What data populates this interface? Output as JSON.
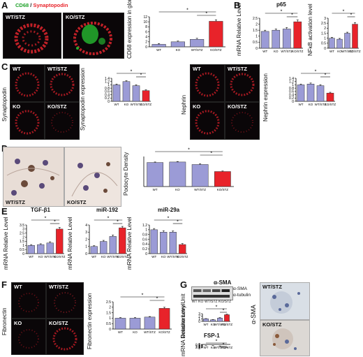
{
  "panels": {
    "A": {
      "label": "A",
      "legend_green": "CD68",
      "legend_red": "Synaptopodin",
      "img1": "WT/STZ",
      "img2": "KO/STZ"
    },
    "B": {
      "label": "B",
      "title": "p65"
    },
    "C": {
      "label": "C",
      "row_label_1": "Synaptopodin",
      "row_label_2": "Nephrin",
      "imgs": [
        "WT",
        "WT/STZ",
        "KO",
        "KO/STZ",
        "WT",
        "WT/STZ",
        "KO",
        "KO/STZ"
      ]
    },
    "D": {
      "label": "D",
      "img1": "WT/STZ",
      "img2": "KO/STZ"
    },
    "E": {
      "label": "E"
    },
    "F": {
      "label": "F",
      "row_label": "Fibronectin",
      "imgs": [
        "WT",
        "WT/STZ",
        "KO",
        "KO/STZ"
      ]
    },
    "G": {
      "label": "G",
      "blot_title": "α-SMA",
      "band1": "α-SMA",
      "band2": "α-tubulin",
      "blot_lanes": [
        "WT",
        "KO",
        "WT/STZ",
        "KO/STZ"
      ],
      "img_label": "α-SMA",
      "img1": "WT/STZ",
      "img2": "KO/STZ"
    }
  },
  "colors": {
    "bar_default": "#9b9bd6",
    "bar_highlight": "#e8232a",
    "bar_edge": "#333333",
    "sig_star": "#000000"
  },
  "chart_data": [
    {
      "id": "A",
      "type": "bar",
      "categories": [
        "WT",
        "KO",
        "WT/STZ",
        "KO/STZ"
      ],
      "values": [
        1,
        2,
        3,
        10.2
      ],
      "errors": [
        0.3,
        0.3,
        0.4,
        0.6
      ],
      "ylabel": "CD68 expression in glomeruli",
      "ylim": [
        0,
        12
      ],
      "yticks": [
        0,
        2,
        4,
        6,
        8,
        10,
        12
      ],
      "sig": [
        [
          2,
          3
        ],
        [
          0,
          3
        ]
      ]
    },
    {
      "id": "B1",
      "type": "bar",
      "categories": [
        "WT",
        "KO",
        "WT/STZ",
        "KO/STZ"
      ],
      "values": [
        1.4,
        1.5,
        1.6,
        2.2
      ],
      "errors": [
        0.1,
        0.1,
        0.12,
        0.15
      ],
      "ylabel": "mRNA Relative Level",
      "ylim": [
        0,
        2.5
      ],
      "yticks": [
        0,
        0.5,
        1,
        1.5,
        2,
        2.5
      ],
      "sig": [
        [
          2,
          3
        ],
        [
          0,
          3
        ]
      ]
    },
    {
      "id": "B2",
      "type": "bar",
      "categories": [
        "WT",
        "KO",
        "WT/STZ",
        "KO/STZ"
      ],
      "values": [
        1.0,
        0.9,
        1.5,
        2.4
      ],
      "errors": [
        0.08,
        0.08,
        0.1,
        0.15
      ],
      "ylabel": "NFκB activation level",
      "ylim": [
        0,
        3
      ],
      "yticks": [
        0,
        0.5,
        1,
        1.5,
        2,
        2.5,
        3
      ],
      "sig": [
        [
          2,
          3
        ],
        [
          0,
          3
        ]
      ]
    },
    {
      "id": "C1",
      "type": "bar",
      "categories": [
        "WT",
        "KO",
        "WT/STZ",
        "KO/STZ"
      ],
      "values": [
        1.0,
        1.2,
        0.95,
        0.65
      ],
      "errors": [
        0.05,
        0.05,
        0.05,
        0.05
      ],
      "ylabel": "Synaptopodin expression",
      "ylim": [
        0,
        1.4
      ],
      "yticks": [
        0,
        0.2,
        0.4,
        0.6,
        0.8,
        1,
        1.2,
        1.4
      ],
      "sig": [
        [
          2,
          3
        ],
        [
          0,
          3
        ]
      ]
    },
    {
      "id": "C2",
      "type": "bar",
      "categories": [
        "WT",
        "KO",
        "WT/STZ",
        "KO/STZ"
      ],
      "values": [
        1.0,
        1.05,
        0.95,
        0.5
      ],
      "errors": [
        0.05,
        0.06,
        0.06,
        0.05
      ],
      "ylabel": "Nephrin expression",
      "ylim": [
        0,
        1.4
      ],
      "yticks": [
        0,
        0.2,
        0.4,
        0.6,
        0.8,
        1,
        1.2,
        1.4
      ],
      "sig": [
        [
          2,
          3
        ],
        [
          0,
          3
        ]
      ]
    },
    {
      "id": "D",
      "type": "bar",
      "categories": [
        "WT",
        "KO",
        "WT/STZ",
        "KO/STZ"
      ],
      "values": [
        48,
        49,
        44,
        30
      ],
      "errors": [
        1,
        1,
        1.5,
        1
      ],
      "ylabel": "Podocyte Density",
      "ylim": [
        0,
        60
      ],
      "yticks": [],
      "sig": [
        [
          2,
          3
        ],
        [
          0,
          3
        ]
      ]
    },
    {
      "id": "E1",
      "type": "bar",
      "title": "TGF-β1",
      "categories": [
        "WT",
        "KO",
        "WT/STZ",
        "KO/STZ"
      ],
      "values": [
        1.0,
        1.1,
        1.3,
        3.0
      ],
      "errors": [
        0.1,
        0.1,
        0.15,
        0.2
      ],
      "ylabel": "mRNA Relative Level",
      "ylim": [
        0,
        3.5
      ],
      "yticks": [
        0,
        0.5,
        1,
        1.5,
        2,
        2.5,
        3,
        3.5
      ],
      "sig": [
        [
          2,
          3
        ],
        [
          0,
          3
        ]
      ]
    },
    {
      "id": "E2",
      "type": "bar",
      "title": "miR-192",
      "categories": [
        "WT",
        "KO",
        "WT/STZ",
        "KO/STZ"
      ],
      "values": [
        1.0,
        1.7,
        2.4,
        3.6
      ],
      "errors": [
        0.1,
        0.15,
        0.2,
        0.2
      ],
      "ylabel": "mRNA Relative Level",
      "ylim": [
        0,
        4
      ],
      "yticks": [
        0,
        1,
        2,
        3,
        4
      ],
      "sig": [
        [
          2,
          3
        ],
        [
          0,
          3
        ]
      ]
    },
    {
      "id": "E3",
      "type": "bar",
      "title": "miR-29a",
      "categories": [
        "WT",
        "KO",
        "WT/STZ",
        "KO/STZ"
      ],
      "values": [
        1.0,
        0.9,
        0.9,
        0.38
      ],
      "errors": [
        0.05,
        0.06,
        0.05,
        0.04
      ],
      "ylabel": "mRNA Relative Level",
      "ylim": [
        0,
        1.2
      ],
      "yticks": [
        0,
        0.2,
        0.4,
        0.6,
        0.8,
        1,
        1.2
      ],
      "sig": [
        [
          2,
          3
        ],
        [
          0,
          3
        ]
      ]
    },
    {
      "id": "F",
      "type": "bar",
      "categories": [
        "WT",
        "KO",
        "WT/STZ",
        "KO/STZ"
      ],
      "values": [
        1.0,
        1.0,
        1.1,
        1.9
      ],
      "errors": [
        0.05,
        0.05,
        0.05,
        0.1
      ],
      "ylabel": "Fibronectin expression",
      "ylim": [
        0,
        2.5
      ],
      "yticks": [
        0,
        0.5,
        1,
        1.5,
        2,
        2.5
      ],
      "sig": [
        [
          2,
          3
        ],
        [
          0,
          3
        ]
      ]
    },
    {
      "id": "G1",
      "type": "bar",
      "categories": [
        "WT",
        "KO",
        "WT/STZ",
        "KO/STZ"
      ],
      "values": [
        1.0,
        0.6,
        1.3,
        2.6
      ],
      "errors": [
        0.1,
        0.1,
        0.15,
        0.2
      ],
      "ylabel": "Densitometry Unit",
      "ylim": [
        0,
        3
      ],
      "yticks": [
        0,
        1,
        2,
        3
      ],
      "sig": [
        [
          2,
          3
        ],
        [
          0,
          3
        ]
      ]
    },
    {
      "id": "G2",
      "type": "bar",
      "title": "FSP-1",
      "categories": [
        "WT",
        "KO",
        "WT/STZ",
        "KO/STZ"
      ],
      "values": [
        1.0,
        0.9,
        1.2,
        2.4
      ],
      "errors": [
        0.08,
        0.08,
        0.1,
        0.2
      ],
      "ylabel": "mRNA Relative Level",
      "ylim": [
        0,
        3
      ],
      "yticks": [
        0,
        0.5,
        1,
        1.5,
        2,
        2.5,
        3
      ],
      "sig": [
        [
          2,
          3
        ],
        [
          0,
          3
        ]
      ]
    }
  ]
}
